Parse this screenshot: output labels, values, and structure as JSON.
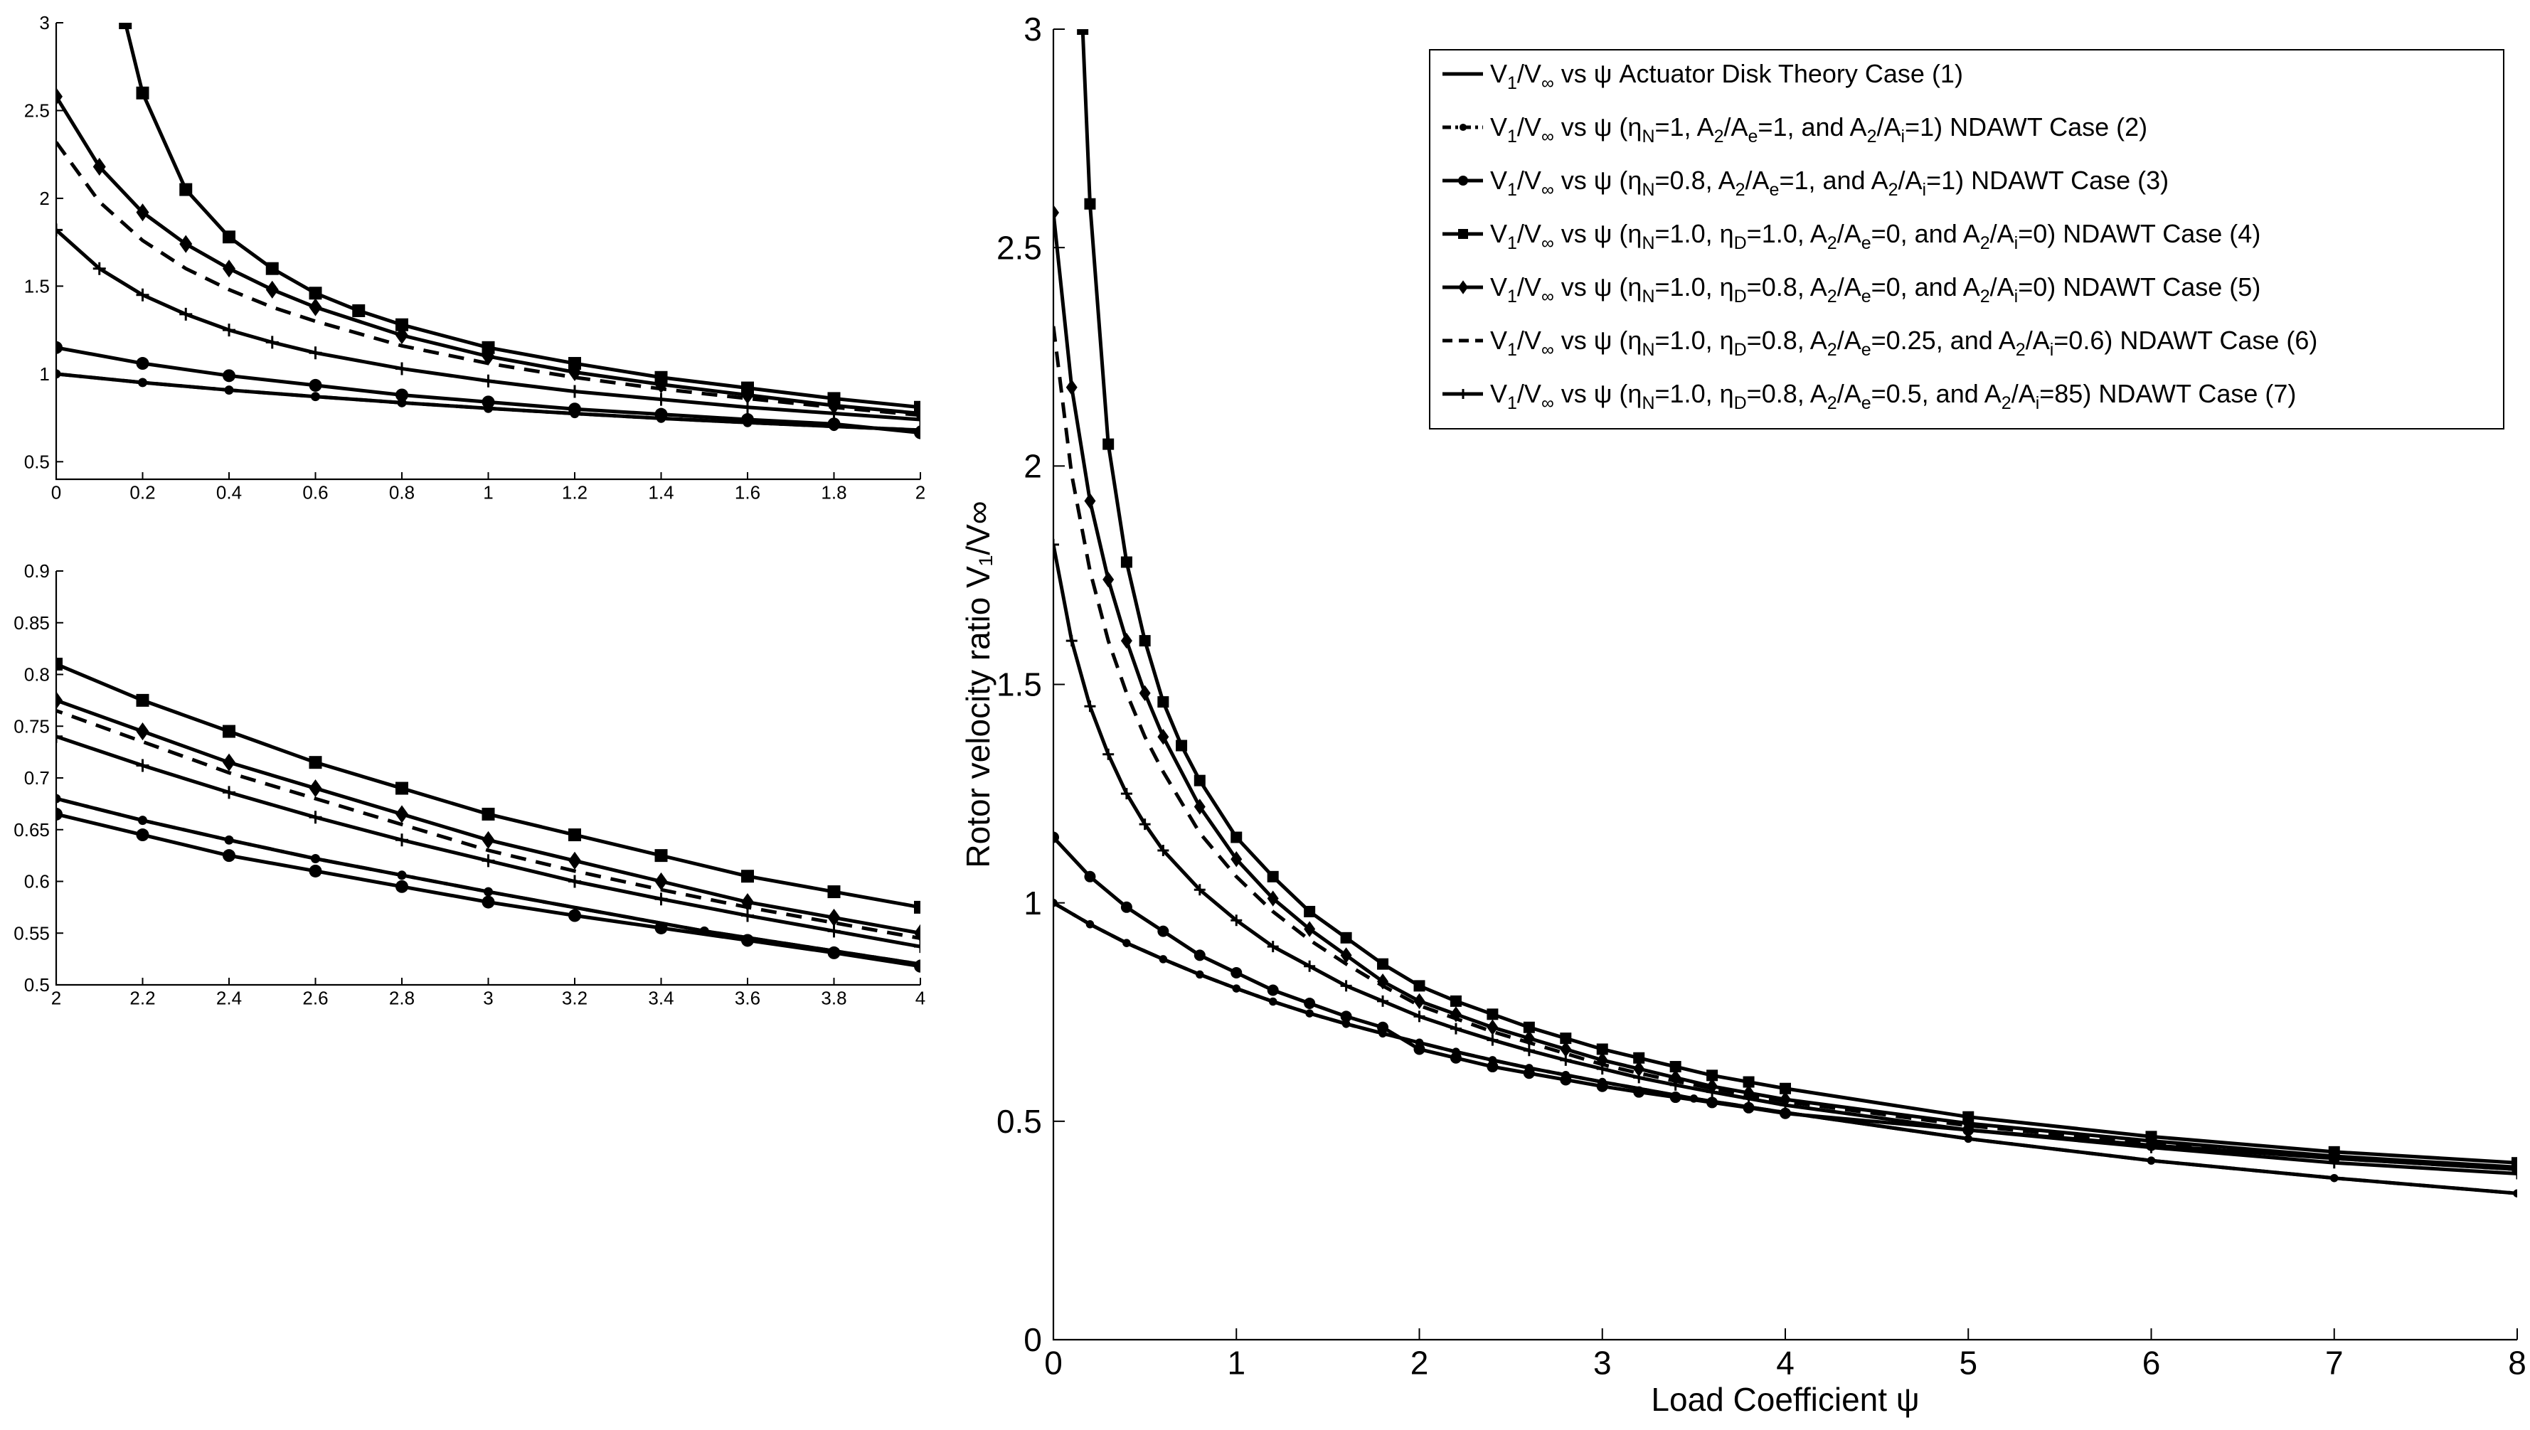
{
  "chart_data": [
    {
      "id": "main",
      "type": "line",
      "xlabel": "Load Coefficient ψ",
      "ylabel": "Rotor velocity ratio V₁/V∞",
      "xlim": [
        0,
        8
      ],
      "ylim": [
        0,
        3
      ],
      "xticks": [
        0,
        1,
        2,
        3,
        4,
        5,
        6,
        7,
        8
      ],
      "yticks": [
        0,
        0.5,
        1,
        1.5,
        2,
        2.5,
        3
      ],
      "xtick_labels": [
        "0",
        "1",
        "2",
        "3",
        "4",
        "5",
        "6",
        "7",
        "8"
      ],
      "ytick_labels": [
        "0",
        "0.5",
        "1",
        "1.5",
        "2",
        "2.5",
        "3"
      ],
      "grid": false,
      "legend_position": "top-right"
    },
    {
      "id": "inset-top",
      "type": "line",
      "xlim": [
        0,
        2
      ],
      "ylim": [
        0.4,
        3
      ],
      "xticks": [
        0,
        0.2,
        0.4,
        0.6,
        0.8,
        1,
        1.2,
        1.4,
        1.6,
        1.8,
        2
      ],
      "yticks": [
        0.5,
        1,
        1.5,
        2,
        2.5,
        3
      ],
      "xtick_labels": [
        "0",
        "0.2",
        "0.4",
        "0.6",
        "0.8",
        "1",
        "1.2",
        "1.4",
        "1.6",
        "1.8",
        "2"
      ],
      "ytick_labels": [
        "0.5",
        "1",
        "1.5",
        "2",
        "2.5",
        "3"
      ],
      "grid": false
    },
    {
      "id": "inset-bottom",
      "type": "line",
      "xlim": [
        2,
        4
      ],
      "ylim": [
        0.5,
        0.9
      ],
      "xticks": [
        2,
        2.2,
        2.4,
        2.6,
        2.8,
        3,
        3.2,
        3.4,
        3.6,
        3.8,
        4
      ],
      "yticks": [
        0.5,
        0.55,
        0.6,
        0.65,
        0.7,
        0.75,
        0.8,
        0.85,
        0.9
      ],
      "xtick_labels": [
        "2",
        "2.2",
        "2.4",
        "2.6",
        "2.8",
        "3",
        "3.2",
        "3.4",
        "3.6",
        "3.8",
        "4"
      ],
      "ytick_labels": [
        "0.5",
        "0.55",
        "0.6",
        "0.65",
        "0.7",
        "0.75",
        "0.8",
        "0.85",
        "0.9"
      ],
      "grid": false
    }
  ],
  "series": [
    {
      "case": 1,
      "marker": "none",
      "dash": "solid",
      "legend": [
        "V",
        "1",
        "/V",
        "∞",
        " vs ψ Actuator Disk Theory Case (1)"
      ],
      "x": [
        0,
        0.2,
        0.4,
        0.6,
        0.8,
        1,
        1.2,
        1.4,
        1.6,
        1.8,
        2,
        2.2,
        2.4,
        2.6,
        2.8,
        3,
        3.5,
        4,
        5,
        6,
        7,
        8
      ],
      "y": [
        1,
        0.951,
        0.908,
        0.871,
        0.836,
        0.804,
        0.774,
        0.747,
        0.723,
        0.701,
        0.68,
        0.659,
        0.64,
        0.622,
        0.606,
        0.59,
        0.552,
        0.52,
        0.46,
        0.41,
        0.37,
        0.335
      ]
    },
    {
      "case": 2,
      "marker": "dot",
      "dash": "dashdot",
      "legend": [
        "V",
        "1",
        "/V",
        "∞",
        " vs ψ (η",
        "N",
        "=1, A",
        "2",
        "/A",
        "e",
        "=1, and A",
        "2",
        "/A",
        "i",
        "=1) NDAWT Case (2)"
      ],
      "x": [
        0,
        0.2,
        0.4,
        0.6,
        0.8,
        1,
        1.2,
        1.4,
        1.6,
        1.8,
        2,
        2.2,
        2.4,
        2.6,
        2.8,
        3,
        3.5,
        4,
        5,
        6,
        7,
        8
      ],
      "y": [
        1,
        0.951,
        0.908,
        0.871,
        0.836,
        0.804,
        0.774,
        0.747,
        0.723,
        0.701,
        0.68,
        0.659,
        0.64,
        0.622,
        0.606,
        0.59,
        0.552,
        0.52,
        0.46,
        0.41,
        0.37,
        0.335
      ]
    },
    {
      "case": 3,
      "marker": "circle",
      "dash": "solid",
      "legend": [
        "V",
        "1",
        "/V",
        "∞",
        " vs ψ (η",
        "N",
        "=0.8, A",
        "2",
        "/A",
        "e",
        "=1, and A",
        "2",
        "/A",
        "i",
        "=1) NDAWT Case (3)"
      ],
      "x": [
        0,
        0.2,
        0.4,
        0.6,
        0.8,
        1,
        1.2,
        1.4,
        1.6,
        1.8,
        2,
        2.2,
        2.4,
        2.6,
        2.8,
        3,
        3.2,
        3.4,
        3.6,
        3.8,
        4,
        5,
        6,
        7,
        8
      ],
      "y": [
        1.15,
        1.06,
        0.99,
        0.935,
        0.88,
        0.84,
        0.8,
        0.77,
        0.74,
        0.715,
        0.665,
        0.645,
        0.625,
        0.61,
        0.595,
        0.58,
        0.567,
        0.555,
        0.543,
        0.531,
        0.518,
        0.48,
        0.445,
        0.415,
        0.39
      ]
    },
    {
      "case": 4,
      "marker": "square",
      "dash": "solid",
      "legend": [
        "V",
        "1",
        "/V",
        "∞",
        " vs ψ (η",
        "N",
        "=1.0, η",
        "D",
        "=1.0, A",
        "2",
        "/A",
        "e",
        "=0, and A",
        "2",
        "/A",
        "i",
        "=0) NDAWT Case (4)"
      ],
      "x": [
        0.16,
        0.2,
        0.3,
        0.4,
        0.5,
        0.6,
        0.7,
        0.8,
        1,
        1.2,
        1.4,
        1.6,
        1.8,
        2,
        2.2,
        2.4,
        2.6,
        2.8,
        3,
        3.2,
        3.4,
        3.6,
        3.8,
        4,
        5,
        6,
        7,
        8
      ],
      "y": [
        3.0,
        2.6,
        2.05,
        1.78,
        1.6,
        1.46,
        1.36,
        1.28,
        1.15,
        1.06,
        0.98,
        0.92,
        0.86,
        0.81,
        0.775,
        0.745,
        0.715,
        0.69,
        0.665,
        0.645,
        0.625,
        0.605,
        0.59,
        0.575,
        0.51,
        0.465,
        0.43,
        0.405
      ]
    },
    {
      "case": 5,
      "marker": "diamond",
      "dash": "solid",
      "legend": [
        "V",
        "1",
        "/V",
        "∞",
        " vs ψ (η",
        "N",
        "=1.0, η",
        "D",
        "=0.8, A",
        "2",
        "/A",
        "e",
        "=0, and A",
        "2",
        "/A",
        "i",
        "=0) NDAWT Case (5)"
      ],
      "x": [
        0,
        0.1,
        0.2,
        0.3,
        0.4,
        0.5,
        0.6,
        0.8,
        1,
        1.2,
        1.4,
        1.6,
        1.8,
        2,
        2.2,
        2.4,
        2.6,
        2.8,
        3,
        3.2,
        3.4,
        3.6,
        3.8,
        4,
        5,
        6,
        7,
        8
      ],
      "y": [
        2.58,
        2.18,
        1.92,
        1.74,
        1.6,
        1.48,
        1.38,
        1.22,
        1.1,
        1.01,
        0.94,
        0.88,
        0.82,
        0.775,
        0.745,
        0.715,
        0.69,
        0.665,
        0.64,
        0.62,
        0.6,
        0.58,
        0.565,
        0.55,
        0.495,
        0.455,
        0.42,
        0.395
      ]
    },
    {
      "case": 6,
      "marker": "none",
      "dash": "dashed",
      "legend": [
        "V",
        "1",
        "/V",
        "∞",
        " vs ψ (η",
        "N",
        "=1.0, η",
        "D",
        "=0.8, A",
        "2",
        "/A",
        "e",
        "=0.25, and A",
        "2",
        "/A",
        "i",
        "=0.6) NDAWT Case (6)"
      ],
      "x": [
        0,
        0.1,
        0.2,
        0.3,
        0.4,
        0.5,
        0.6,
        0.8,
        1,
        1.2,
        1.4,
        1.6,
        1.8,
        2,
        2.2,
        2.4,
        2.6,
        2.8,
        3,
        3.2,
        3.4,
        3.6,
        3.8,
        4,
        5,
        6,
        7,
        8
      ],
      "y": [
        2.32,
        1.98,
        1.76,
        1.6,
        1.48,
        1.38,
        1.3,
        1.16,
        1.06,
        0.98,
        0.915,
        0.86,
        0.81,
        0.765,
        0.735,
        0.705,
        0.68,
        0.655,
        0.63,
        0.61,
        0.592,
        0.575,
        0.56,
        0.545,
        0.49,
        0.45,
        0.415,
        0.39
      ]
    },
    {
      "case": 7,
      "marker": "plus",
      "dash": "solid",
      "legend": [
        "V",
        "1",
        "/V",
        "∞",
        " vs ψ (η",
        "N",
        "=1.0, η",
        "D",
        "=0.8, A",
        "2",
        "/A",
        "e",
        "=0.5, and A",
        "2",
        "/A",
        "i",
        "=85) NDAWT Case (7)"
      ],
      "x": [
        0,
        0.1,
        0.2,
        0.3,
        0.4,
        0.5,
        0.6,
        0.8,
        1,
        1.2,
        1.4,
        1.6,
        1.8,
        2,
        2.2,
        2.4,
        2.6,
        2.8,
        3,
        3.2,
        3.4,
        3.6,
        3.8,
        4,
        5,
        6,
        7,
        8
      ],
      "y": [
        1.82,
        1.6,
        1.45,
        1.34,
        1.25,
        1.18,
        1.12,
        1.03,
        0.96,
        0.9,
        0.855,
        0.81,
        0.775,
        0.74,
        0.712,
        0.686,
        0.662,
        0.64,
        0.62,
        0.6,
        0.583,
        0.567,
        0.552,
        0.537,
        0.48,
        0.44,
        0.405,
        0.38
      ]
    }
  ]
}
